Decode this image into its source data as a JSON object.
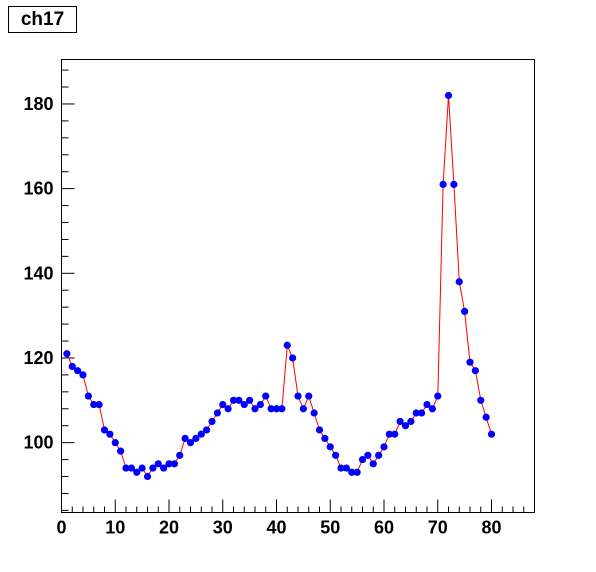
{
  "chart_data": {
    "type": "line",
    "title": "ch17",
    "xlabel": "",
    "ylabel": "",
    "xlim": [
      0,
      88
    ],
    "ylim": [
      83.5,
      190.5
    ],
    "xticks": [
      0,
      10,
      20,
      30,
      40,
      50,
      60,
      70,
      80
    ],
    "yticks": [
      100,
      120,
      140,
      160,
      180
    ],
    "grid": false,
    "marker_color": "#0000ff",
    "line_color": "#ff0000",
    "x": [
      1,
      2,
      3,
      4,
      5,
      6,
      7,
      8,
      9,
      10,
      11,
      12,
      13,
      14,
      15,
      16,
      17,
      18,
      19,
      20,
      21,
      22,
      23,
      24,
      25,
      26,
      27,
      28,
      29,
      30,
      31,
      32,
      33,
      34,
      35,
      36,
      37,
      38,
      39,
      40,
      41,
      42,
      43,
      44,
      45,
      46,
      47,
      48,
      49,
      50,
      51,
      52,
      53,
      54,
      55,
      56,
      57,
      58,
      59,
      60,
      61,
      62,
      63,
      64,
      65,
      66,
      67,
      68,
      69,
      70,
      71,
      72,
      73,
      74,
      75,
      76,
      77,
      78,
      79,
      80
    ],
    "y": [
      121,
      118,
      117,
      116,
      111,
      109,
      109,
      103,
      102,
      100,
      98,
      94,
      94,
      93,
      94,
      92,
      94,
      95,
      94,
      95,
      95,
      97,
      101,
      100,
      101,
      102,
      103,
      105,
      107,
      109,
      108,
      110,
      110,
      109,
      110,
      108,
      109,
      111,
      108,
      108,
      108,
      123,
      120,
      111,
      108,
      111,
      107,
      103,
      101,
      99,
      97,
      94,
      94,
      93,
      93,
      96,
      97,
      95,
      97,
      99,
      102,
      102,
      105,
      104,
      105,
      107,
      107,
      109,
      108,
      111,
      161,
      182,
      161,
      138,
      131,
      119,
      117,
      110,
      106,
      102
    ]
  }
}
